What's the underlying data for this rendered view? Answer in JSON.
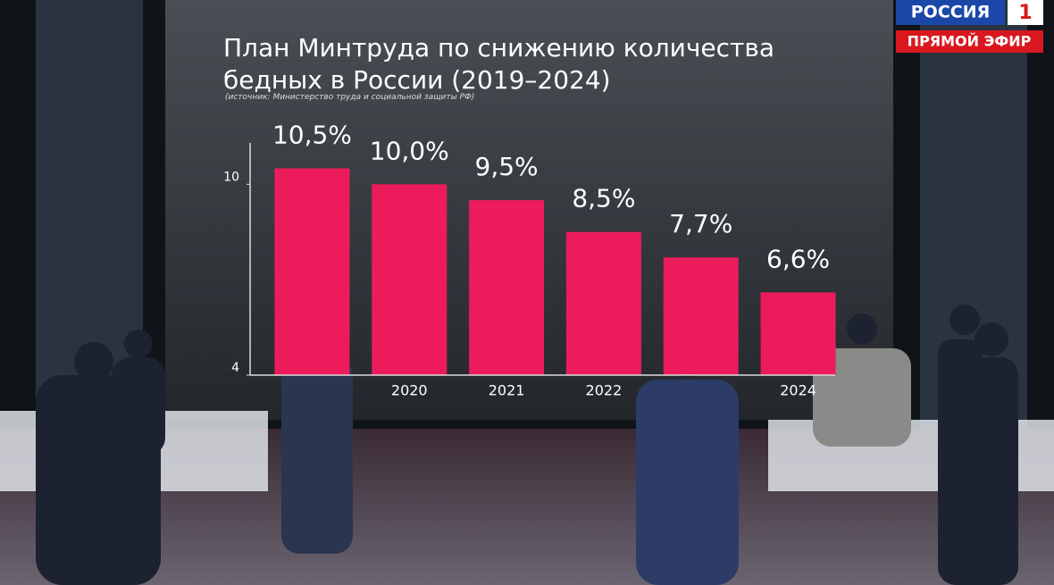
{
  "chart_data": {
    "type": "bar",
    "title": "План Минтруда по снижению количества\nбедных в России (2019–2024)",
    "subtitle": "(источник: Министерство труда и социальной защиты РФ)",
    "categories": [
      null,
      "2020",
      "2021",
      "2022",
      null,
      "2024"
    ],
    "values": [
      10.5,
      10.0,
      9.5,
      8.5,
      7.7,
      6.6
    ],
    "value_labels": [
      "10,5%",
      "10,0%",
      "9,5%",
      "8,5%",
      "7,7%",
      "6,6%"
    ],
    "color": "#ec1c5c",
    "ylim": [
      4,
      11.3
    ],
    "yticks": [
      4,
      10
    ],
    "grid": false
  },
  "channel_logo": {
    "name": "РОССИЯ",
    "number": "1",
    "status": "ПРЯМОЙ ЭФИР"
  }
}
